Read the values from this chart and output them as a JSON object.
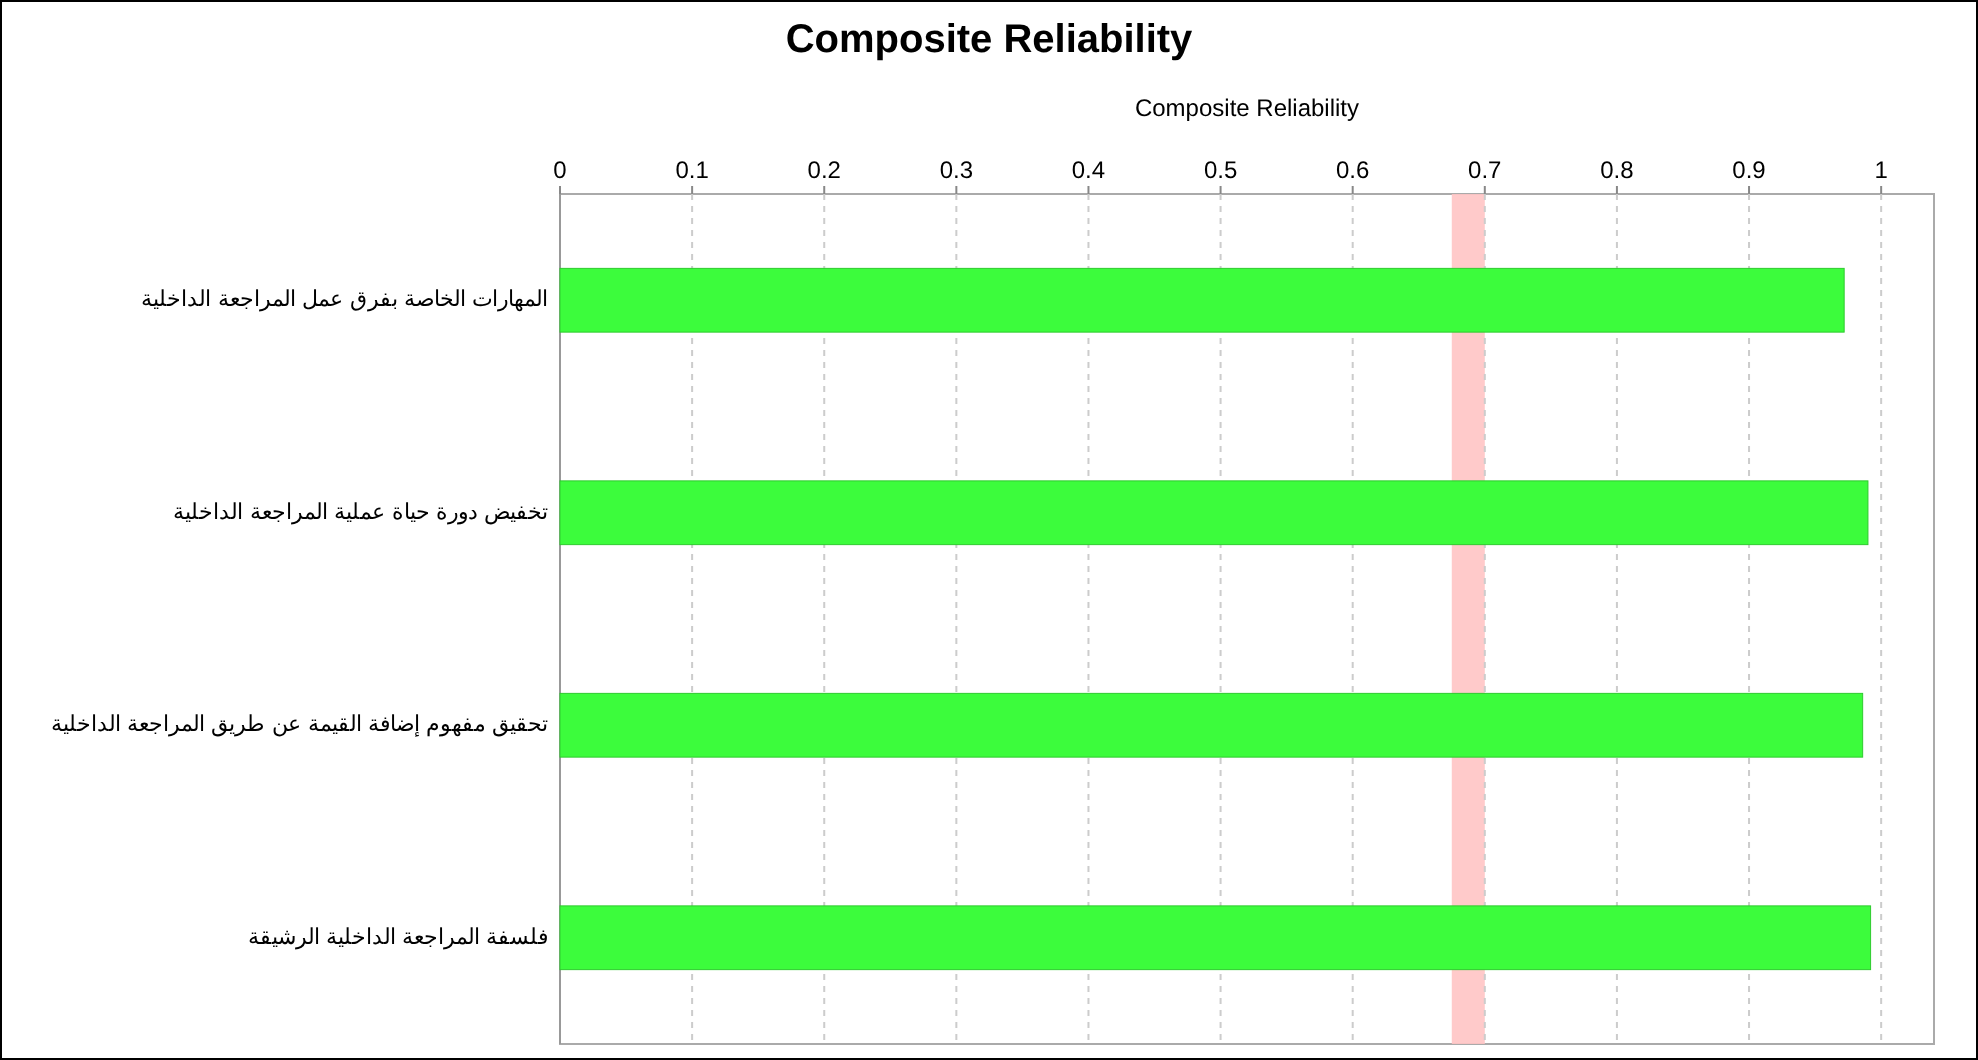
{
  "chart_data": {
    "type": "bar",
    "orientation": "horizontal",
    "title": "Composite Reliability",
    "xlabel": "Composite Reliability",
    "categories": [
      "المهارات الخاصة بفرق عمل المراجعة الداخلية",
      "تخفيض دورة حياة عملية المراجعة الداخلية",
      "تحقيق مفهوم إضافة القيمة عن طريق المراجعة الداخلية",
      "فلسفة المراجعة الداخلية الرشيقة"
    ],
    "values": [
      0.972,
      0.99,
      0.986,
      0.992
    ],
    "color": "#3cfc3c",
    "xlim": [
      0,
      1.04
    ],
    "xticks": [
      0,
      0.1,
      0.2,
      0.3,
      0.4,
      0.5,
      0.6,
      0.7,
      0.8,
      0.9,
      1
    ],
    "grid": "x",
    "bands": [
      {
        "axis": "x",
        "from": 0.675,
        "to": 0.7,
        "color": "#ffc4c4"
      }
    ]
  }
}
